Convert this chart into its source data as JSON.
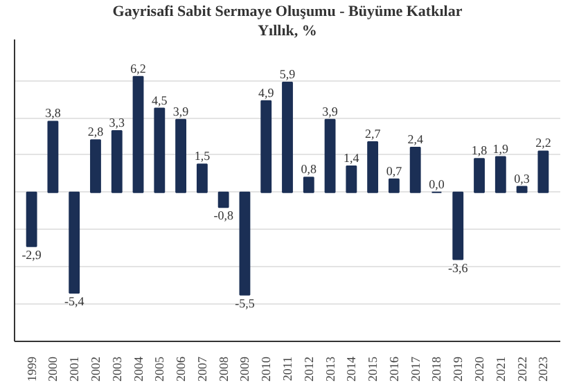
{
  "chart_data": {
    "type": "bar",
    "title": "Gayrisafi Sabit Sermaye Oluşumu - Büyüme Katkılar",
    "subtitle": "Yıllık, %",
    "categories": [
      "1999",
      "2000",
      "2001",
      "2002",
      "2003",
      "2004",
      "2005",
      "2006",
      "2007",
      "2008",
      "2009",
      "2010",
      "2011",
      "2012",
      "2013",
      "2014",
      "2015",
      "2016",
      "2017",
      "2018",
      "2019",
      "2020",
      "2021",
      "2022",
      "2023"
    ],
    "values": [
      -2.9,
      3.8,
      -5.4,
      2.8,
      3.3,
      6.2,
      4.5,
      3.9,
      1.5,
      -0.8,
      -5.5,
      4.9,
      5.9,
      0.8,
      3.9,
      1.4,
      2.7,
      0.7,
      2.4,
      0.0,
      -3.6,
      1.8,
      1.9,
      0.3,
      2.2
    ],
    "value_labels": [
      "-2,9",
      "3,8",
      "-5,4",
      "2,8",
      "3,3",
      "6,2",
      "4,5",
      "3,9",
      "1,5",
      "-0,8",
      "-5,5",
      "4,9",
      "5,9",
      "0,8",
      "3,9",
      "1,4",
      "2,7",
      "0,7",
      "2,4",
      "0,0",
      "-3,6",
      "1,8",
      "1,9",
      "0,3",
      "2,2"
    ],
    "color": "#1b2f55",
    "ylim": [
      -8,
      8.2
    ],
    "yticks": [
      {
        "value": -6,
        "label": null
      },
      {
        "value": -4,
        "label": null
      },
      {
        "value": -2,
        "label": null
      },
      {
        "value": 0,
        "label": null
      },
      {
        "value": 2,
        "label": null
      },
      {
        "value": 4,
        "label": null
      },
      {
        "value": 6,
        "label": null
      }
    ],
    "grid": "y",
    "tick_labels": "x"
  }
}
